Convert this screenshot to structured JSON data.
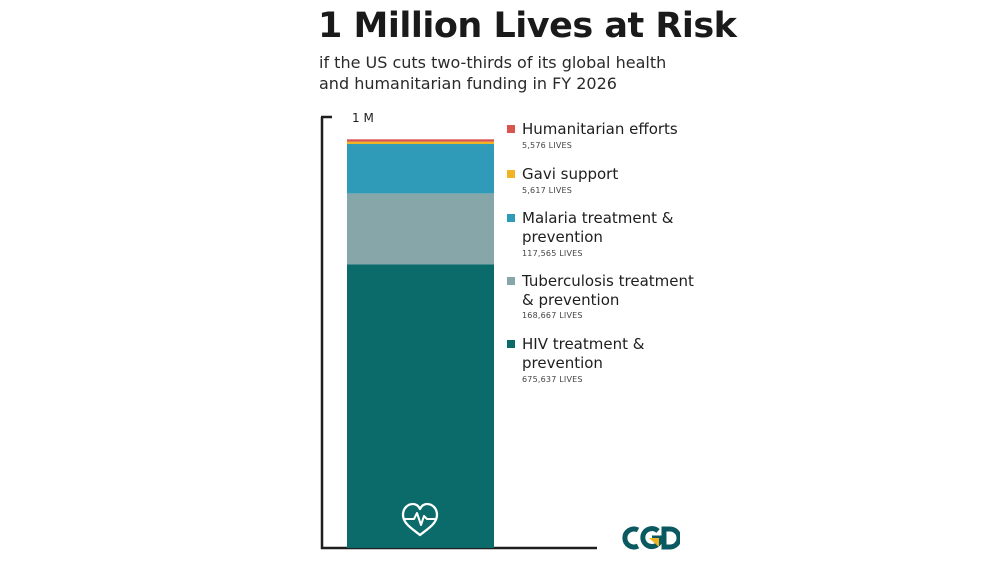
{
  "header": {
    "title": "1 Million Lives at Risk",
    "subtitle": "if the US cuts two-thirds of its global health and humanitarian funding in FY 2026"
  },
  "chart_data": {
    "type": "bar",
    "stacked": true,
    "title": "1 Million Lives at Risk",
    "subtitle": "if the US cuts two-thirds of its global health and humanitarian funding in FY 2026",
    "y_tick_label": "1 M",
    "ylim": [
      0,
      1000000
    ],
    "unit": "lives",
    "grid": false,
    "legend_position": "right",
    "series": [
      {
        "name": "HIV treatment & prevention",
        "value": 675637,
        "value_label": "675,637 LIVES",
        "color": "#0b6b6b"
      },
      {
        "name": "Tuberculosis treatment & prevention",
        "value": 168667,
        "value_label": "168,667 LIVES",
        "color": "#86a6aa"
      },
      {
        "name": "Malaria treatment & prevention",
        "value": 117565,
        "value_label": "117,565 LIVES",
        "color": "#2f9bb8"
      },
      {
        "name": "Gavi support",
        "value": 5617,
        "value_label": "5,617 LIVES",
        "color": "#f0b323"
      },
      {
        "name": "Humanitarian efforts",
        "value": 5576,
        "value_label": "5,576 LIVES",
        "color": "#d9534f"
      }
    ]
  },
  "icons": {
    "bar_icon": "heart-pulse-icon",
    "brand_logo": "cgd-logo"
  },
  "brand": {
    "logo_text": "CGD",
    "logo_color": "#0b5960",
    "logo_accent": "#f0b323"
  }
}
